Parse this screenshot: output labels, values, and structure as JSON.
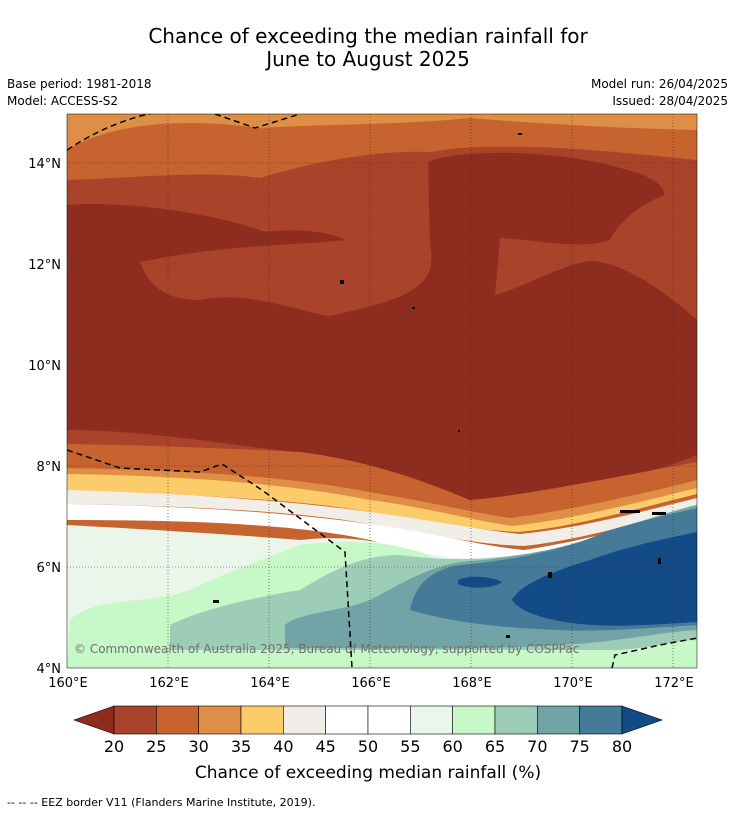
{
  "title_line1": "Chance of exceeding the median rainfall for",
  "title_line2": "June to August 2025",
  "meta": {
    "base_period": "Base period: 1981-2018",
    "model": "Model: ACCESS-S2",
    "model_run": "Model run: 26/04/2025",
    "issued": "Issued: 28/04/2025"
  },
  "credit": "© Commonwealth of Australia 2025, Bureau of Meteorology, supported by COSPPac",
  "footnote": "-- -- -- EEZ border V11 (Flanders Marine Institute, 2019).",
  "chart_data": {
    "type": "heatmap",
    "x_ticks": [
      "160°E",
      "162°E",
      "164°E",
      "166°E",
      "168°E",
      "170°E",
      "172°E"
    ],
    "y_ticks": [
      "4°N",
      "6°N",
      "8°N",
      "10°N",
      "12°N",
      "14°N"
    ],
    "x_range": [
      160,
      172.5
    ],
    "y_range": [
      4,
      15
    ],
    "grid": true,
    "colorbar": {
      "title": "Chance of exceeding median rainfall (%)",
      "ticks": [
        "20",
        "25",
        "30",
        "35",
        "40",
        "45",
        "50",
        "55",
        "60",
        "65",
        "70",
        "75",
        "80"
      ],
      "colors": [
        "#8e2d1f",
        "#a9432a",
        "#c7632f",
        "#de8f45",
        "#fccb6a",
        "#f1ede7",
        "#ffffff",
        "#ffffff",
        "#ebf6ea",
        "#c7f8c7",
        "#9dcdb6",
        "#72a3a6",
        "#467a99",
        "#124b86"
      ],
      "extend": "both"
    },
    "regions": [
      {
        "name": "very-dry-core",
        "class": "20-25",
        "color": "#9c3520"
      },
      {
        "name": "south-east-wet-core",
        "class": ">80",
        "color": "#124b86"
      }
    ]
  }
}
